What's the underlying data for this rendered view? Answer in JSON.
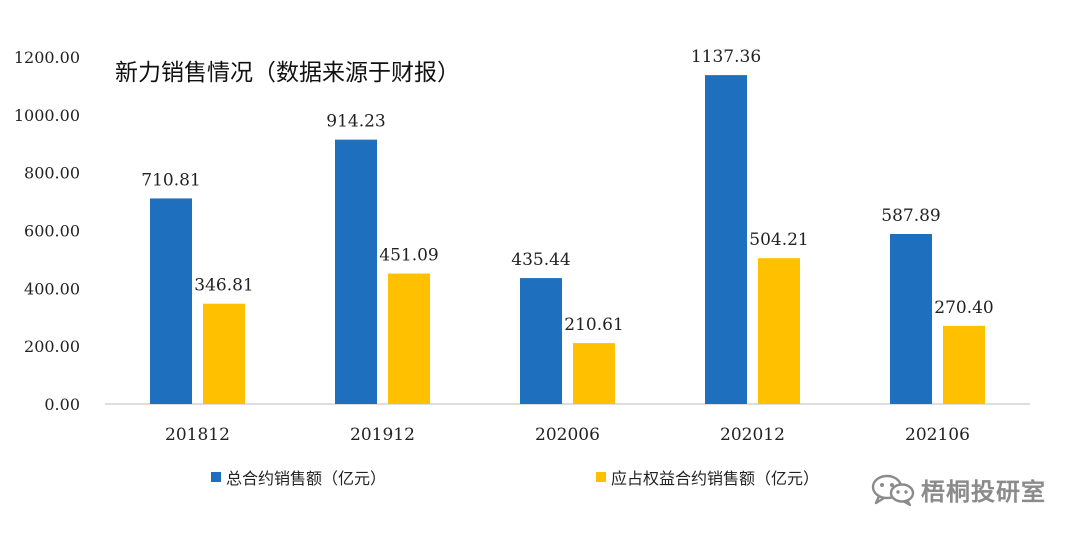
{
  "chart_data": {
    "type": "bar",
    "title": "新力销售情况（数据来源于财报）",
    "categories": [
      "201812",
      "201912",
      "202006",
      "202012",
      "202106"
    ],
    "series": [
      {
        "name": "总合约销售额（亿元）",
        "values": [
          710.81,
          914.23,
          435.44,
          1137.36,
          587.89
        ],
        "color": "#1f6fbf",
        "labels": [
          "710.81",
          "914.23",
          "435.44",
          "1137.36",
          "587.89"
        ]
      },
      {
        "name": "应占权益合约销售额（亿元）",
        "values": [
          346.81,
          451.09,
          210.61,
          504.21,
          270.4
        ],
        "color": "#ffc000",
        "labels": [
          "346.81",
          "451.09",
          "210.61",
          "504.21",
          "270.40"
        ]
      }
    ],
    "ylim": [
      0,
      1200
    ],
    "yticks": [
      "0.00",
      "200.00",
      "400.00",
      "600.00",
      "800.00",
      "1000.00",
      "1200.00"
    ],
    "xlabel": "",
    "ylabel": "",
    "grid": false,
    "legend_position": "bottom"
  },
  "watermark": {
    "text": "梧桐投研室",
    "icon": "wechat-icon",
    "color": "#8b8b8b"
  }
}
